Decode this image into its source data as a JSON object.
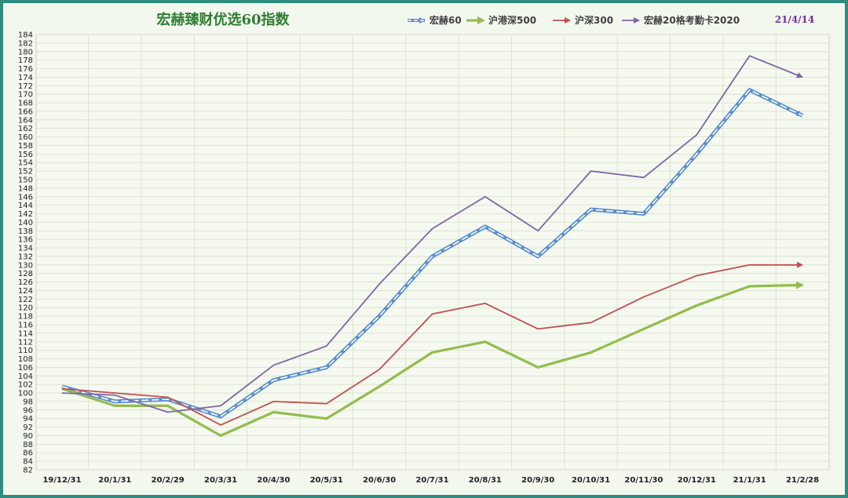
{
  "chart_data": {
    "type": "line",
    "title": "宏赫臻财优选60指数",
    "date_label": "21/4/14",
    "categories": [
      "19/12/31",
      "20/1/31",
      "20/2/29",
      "20/3/31",
      "20/4/30",
      "20/5/31",
      "20/6/30",
      "20/7/31",
      "20/8/31",
      "20/9/30",
      "20/10/31",
      "20/11/30",
      "20/12/31",
      "21/1/31",
      "21/2/28"
    ],
    "ylim": [
      82,
      184
    ],
    "ytick_step": 2,
    "grid": true,
    "legend_position": "top",
    "series": [
      {
        "name": "宏赫60",
        "color": "#5B8ECD",
        "style": "dashed-double",
        "values": [
          101.5,
          98,
          98.5,
          94.5,
          103,
          106,
          118,
          132,
          139,
          132,
          143,
          142,
          156,
          171,
          165
        ]
      },
      {
        "name": "沪港深500",
        "color": "#93BC4E",
        "style": "thick",
        "values": [
          101,
          97,
          97,
          90,
          95.5,
          94,
          101.5,
          109.5,
          112,
          106,
          109.5,
          115,
          120.5,
          125,
          125.3
        ]
      },
      {
        "name": "沪深300",
        "color": "#C0504D",
        "style": "solid",
        "values": [
          101,
          100,
          99,
          92.5,
          98,
          97.5,
          105.5,
          118.5,
          121,
          115,
          116.5,
          122.5,
          127.5,
          130,
          130
        ]
      },
      {
        "name": "宏赫20格考勤卡2020",
        "color": "#7F65A8",
        "style": "solid",
        "values": [
          100,
          99.5,
          95.5,
          97,
          106.5,
          111,
          125.5,
          138.5,
          146,
          138,
          152,
          150.5,
          160.5,
          179,
          174
        ]
      }
    ]
  }
}
